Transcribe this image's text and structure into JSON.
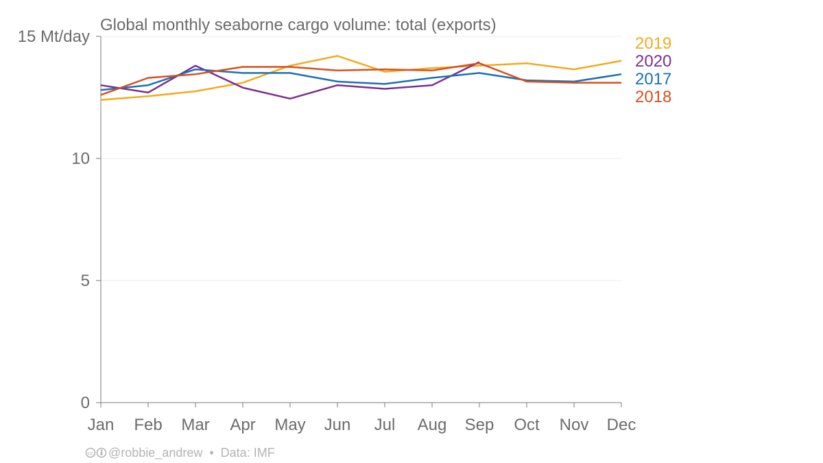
{
  "chart_data": {
    "type": "line",
    "title": "Global monthly seaborne cargo volume: total (exports)",
    "ylabel": "Mt/day",
    "y_top_tick_label": "15 Mt/day",
    "categories": [
      "Jan",
      "Feb",
      "Mar",
      "Apr",
      "May",
      "Jun",
      "Jul",
      "Aug",
      "Sep",
      "Oct",
      "Nov",
      "Dec"
    ],
    "ylim": [
      0,
      15
    ],
    "yticks": [
      0,
      5,
      10,
      15
    ],
    "ytick_labels": [
      "0",
      "5",
      "10",
      "15 Mt/day"
    ],
    "grid": true,
    "legend_position": "right",
    "series": [
      {
        "name": "2019",
        "color": "#f0ab1e",
        "values": [
          12.4,
          12.55,
          12.75,
          13.1,
          13.8,
          14.2,
          13.55,
          13.7,
          13.8,
          13.9,
          13.65,
          14.0
        ]
      },
      {
        "name": "2020",
        "color": "#7b2e8e",
        "values": [
          13.0,
          12.7,
          13.8,
          12.9,
          12.45,
          13.0,
          12.85,
          13.0,
          13.95,
          null,
          null,
          null
        ]
      },
      {
        "name": "2017",
        "color": "#1a6fb5",
        "values": [
          12.8,
          13.0,
          13.65,
          13.5,
          13.5,
          13.15,
          13.05,
          13.3,
          13.5,
          13.2,
          13.15,
          13.45
        ]
      },
      {
        "name": "2018",
        "color": "#d94f1c",
        "values": [
          12.6,
          13.3,
          13.45,
          13.75,
          13.75,
          13.6,
          13.65,
          13.6,
          13.9,
          13.15,
          13.1,
          13.1
        ]
      }
    ],
    "legend_order": [
      "2019",
      "2020",
      "2017",
      "2018"
    ]
  },
  "credit": {
    "icons": "cc-icon",
    "handle": "@robbie_andrew",
    "separator": "•",
    "source": "Data: IMF"
  }
}
